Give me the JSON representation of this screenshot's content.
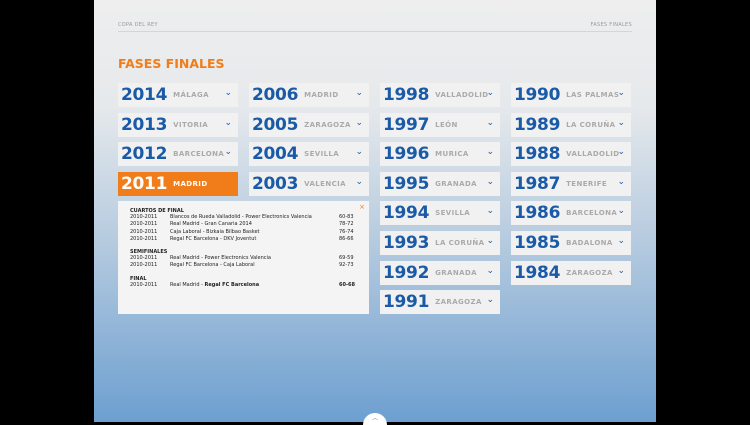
{
  "header": {
    "left": "COPA DEL REY",
    "right": "FASES FINALES"
  },
  "title": "FASES FINALES",
  "columns": [
    [
      {
        "year": "2014",
        "city": "MÁLAGA"
      },
      {
        "year": "2013",
        "city": "VITORIA"
      },
      {
        "year": "2012",
        "city": "BARCELONA"
      },
      {
        "year": "2011",
        "city": "MADRID",
        "active": true
      }
    ],
    [
      {
        "year": "2006",
        "city": "MADRID"
      },
      {
        "year": "2005",
        "city": "ZARAGOZA"
      },
      {
        "year": "2004",
        "city": "SEVILLA"
      },
      {
        "year": "2003",
        "city": "VALENCIA"
      }
    ],
    [
      {
        "year": "1998",
        "city": "VALLADOLID"
      },
      {
        "year": "1997",
        "city": "LEÓN"
      },
      {
        "year": "1996",
        "city": "MURICA"
      },
      {
        "year": "1995",
        "city": "GRANADA"
      },
      {
        "year": "1994",
        "city": "SEVILLA"
      },
      {
        "year": "1993",
        "city": "LA CORUÑA"
      },
      {
        "year": "1992",
        "city": "GRANADA"
      },
      {
        "year": "1991",
        "city": "ZARAGOZA"
      }
    ],
    [
      {
        "year": "1990",
        "city": "LAS PALMAS"
      },
      {
        "year": "1989",
        "city": "LA CORUÑA"
      },
      {
        "year": "1988",
        "city": "VALLADOLID"
      },
      {
        "year": "1987",
        "city": "TENERIFE"
      },
      {
        "year": "1986",
        "city": "BARCELONA"
      },
      {
        "year": "1985",
        "city": "BADALONA"
      },
      {
        "year": "1984",
        "city": "ZARAGOZA"
      }
    ]
  ],
  "detail": {
    "close": "×",
    "sections": [
      {
        "title": "CUARTOS DE FINAL",
        "rows": [
          {
            "season": "2010-2011",
            "match": "Blancos de Rueda Valladolid - Power Electronics Valencia",
            "score": "60-83"
          },
          {
            "season": "2010-2011",
            "match": "Real Madrid - Gran Canaria 2014",
            "score": "78-72"
          },
          {
            "season": "2010-2011",
            "match": "Caja Laboral - Bizkaia Bilbao Basket",
            "score": "76-74"
          },
          {
            "season": "2010-2011",
            "match": "Regal FC Barcelona - DKV Joventut",
            "score": "86-66"
          }
        ]
      },
      {
        "title": "SEMIFINALES",
        "rows": [
          {
            "season": "2010-2011",
            "match": "Real Madrid - Power Electronics Valencia",
            "score": "69-59"
          },
          {
            "season": "2010-2011",
            "match": "Regal FC Barcelona - Caja Laboral",
            "score": "92-73"
          }
        ]
      },
      {
        "title": "FINAL",
        "rows": [
          {
            "season": "2010-2011",
            "match": "Real Madrid - ",
            "winner": "Regal FC Barcelona",
            "score": "60-68"
          }
        ]
      }
    ]
  },
  "handle_icon": "chevron-up-icon",
  "colors": {
    "accent": "#f07d1a",
    "year": "#1a5aa6"
  }
}
